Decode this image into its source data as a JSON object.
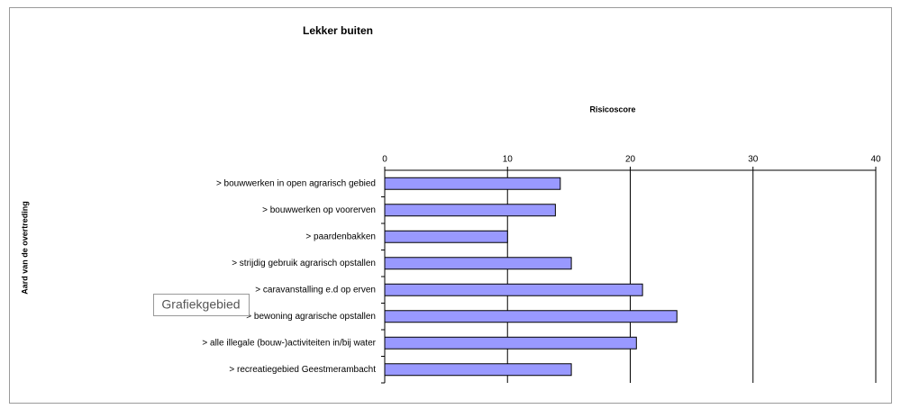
{
  "chart_data": {
    "type": "bar",
    "orientation": "horizontal",
    "title": "Lekker buiten",
    "x_label": "Risicoscore",
    "y_label": "Aard van de overtreding",
    "categories": [
      "> bouwwerken in open agrarisch gebied",
      "> bouwwerken op voorerven",
      "> paardenbakken",
      "> strijdig gebruik agrarisch opstallen",
      "> caravanstalling e.d op erven",
      "> bewoning agrarische opstallen",
      "> alle illegale (bouw-)activiteiten in/bij water",
      "> recreatiegebied Geestmerambacht"
    ],
    "values": [
      14.3,
      13.9,
      10.0,
      15.2,
      21.0,
      23.8,
      20.5,
      15.2
    ],
    "color": "#9999ff",
    "xlim": [
      0,
      40
    ],
    "xticks": [
      0,
      10,
      20,
      30,
      40
    ],
    "grid": true,
    "tooltip": "Grafiekgebied"
  }
}
